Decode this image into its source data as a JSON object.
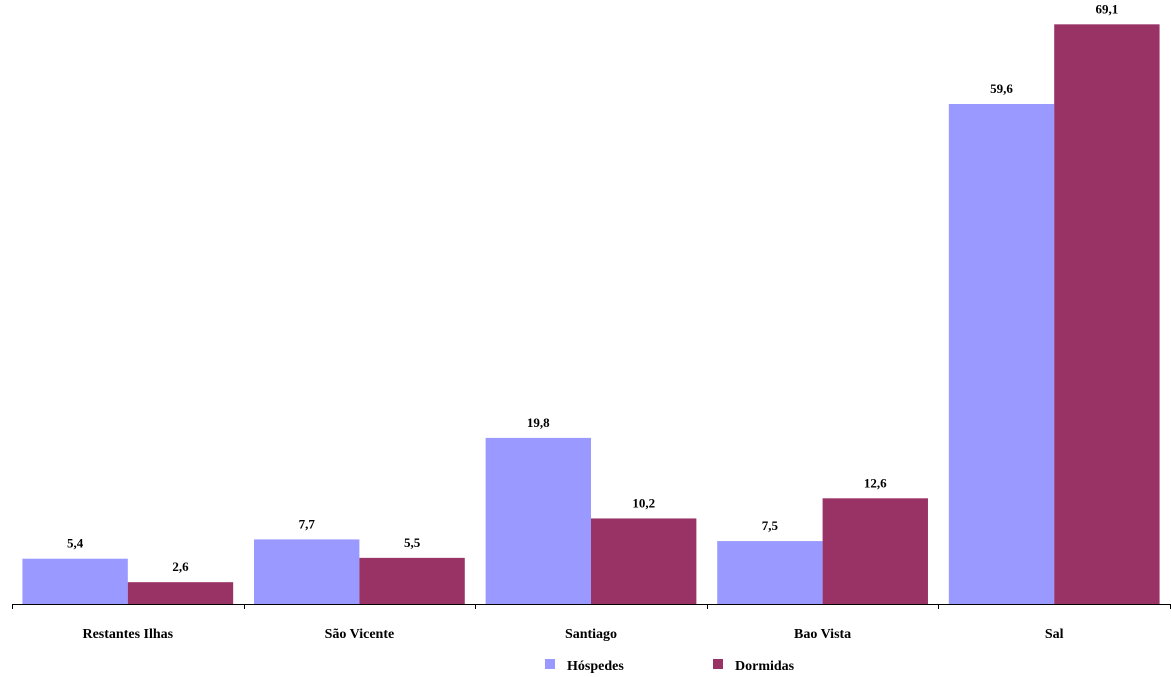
{
  "chart_data": {
    "type": "bar",
    "categories": [
      "Restantes Ilhas",
      "São Vicente",
      "Santiago",
      "Bao Vista",
      "Sal"
    ],
    "series": [
      {
        "name": "Hóspedes",
        "values": [
          5.4,
          7.7,
          19.8,
          7.5,
          59.6
        ],
        "labels": [
          "5,4",
          "7,7",
          "19,8",
          "7,5",
          "59,6"
        ],
        "color": "#9999ff"
      },
      {
        "name": "Dormidas",
        "values": [
          2.6,
          5.5,
          10.2,
          12.6,
          69.1
        ],
        "labels": [
          "2,6",
          "5,5",
          "10,2",
          "12,6",
          "69,1"
        ],
        "color": "#993366"
      }
    ],
    "ylim": [
      0,
      72
    ],
    "grid": false,
    "legend_position": "bottom-center"
  }
}
